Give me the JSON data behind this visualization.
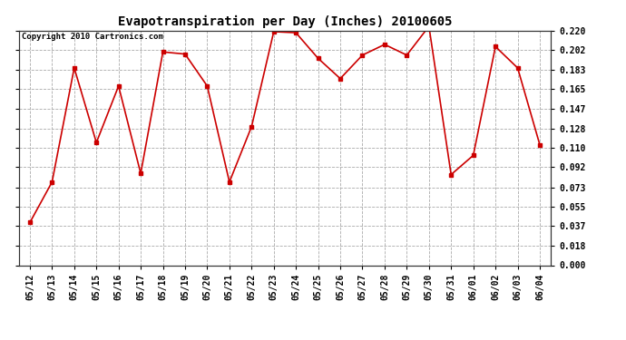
{
  "title": "Evapotranspiration per Day (Inches) 20100605",
  "copyright_text": "Copyright 2010 Cartronics.com",
  "x_labels": [
    "05/12",
    "05/13",
    "05/14",
    "05/15",
    "05/16",
    "05/17",
    "05/18",
    "05/19",
    "05/20",
    "05/21",
    "05/22",
    "05/23",
    "05/24",
    "05/25",
    "05/26",
    "05/27",
    "05/28",
    "05/29",
    "05/30",
    "05/31",
    "06/01",
    "06/02",
    "06/03",
    "06/04"
  ],
  "y_values": [
    0.04,
    0.078,
    0.185,
    0.115,
    0.168,
    0.086,
    0.2,
    0.198,
    0.168,
    0.078,
    0.13,
    0.219,
    0.218,
    0.194,
    0.175,
    0.197,
    0.207,
    0.197,
    0.224,
    0.085,
    0.103,
    0.205,
    0.185,
    0.113
  ],
  "line_color": "#cc0000",
  "marker": "s",
  "marker_size": 3,
  "bg_color": "#ffffff",
  "plot_bg_color": "#ffffff",
  "grid_color": "#aaaaaa",
  "ylim": [
    0.0,
    0.22
  ],
  "yticks": [
    0.0,
    0.018,
    0.037,
    0.055,
    0.073,
    0.092,
    0.11,
    0.128,
    0.147,
    0.165,
    0.183,
    0.202,
    0.22
  ],
  "title_fontsize": 10,
  "tick_fontsize": 7,
  "copyright_fontsize": 6.5
}
